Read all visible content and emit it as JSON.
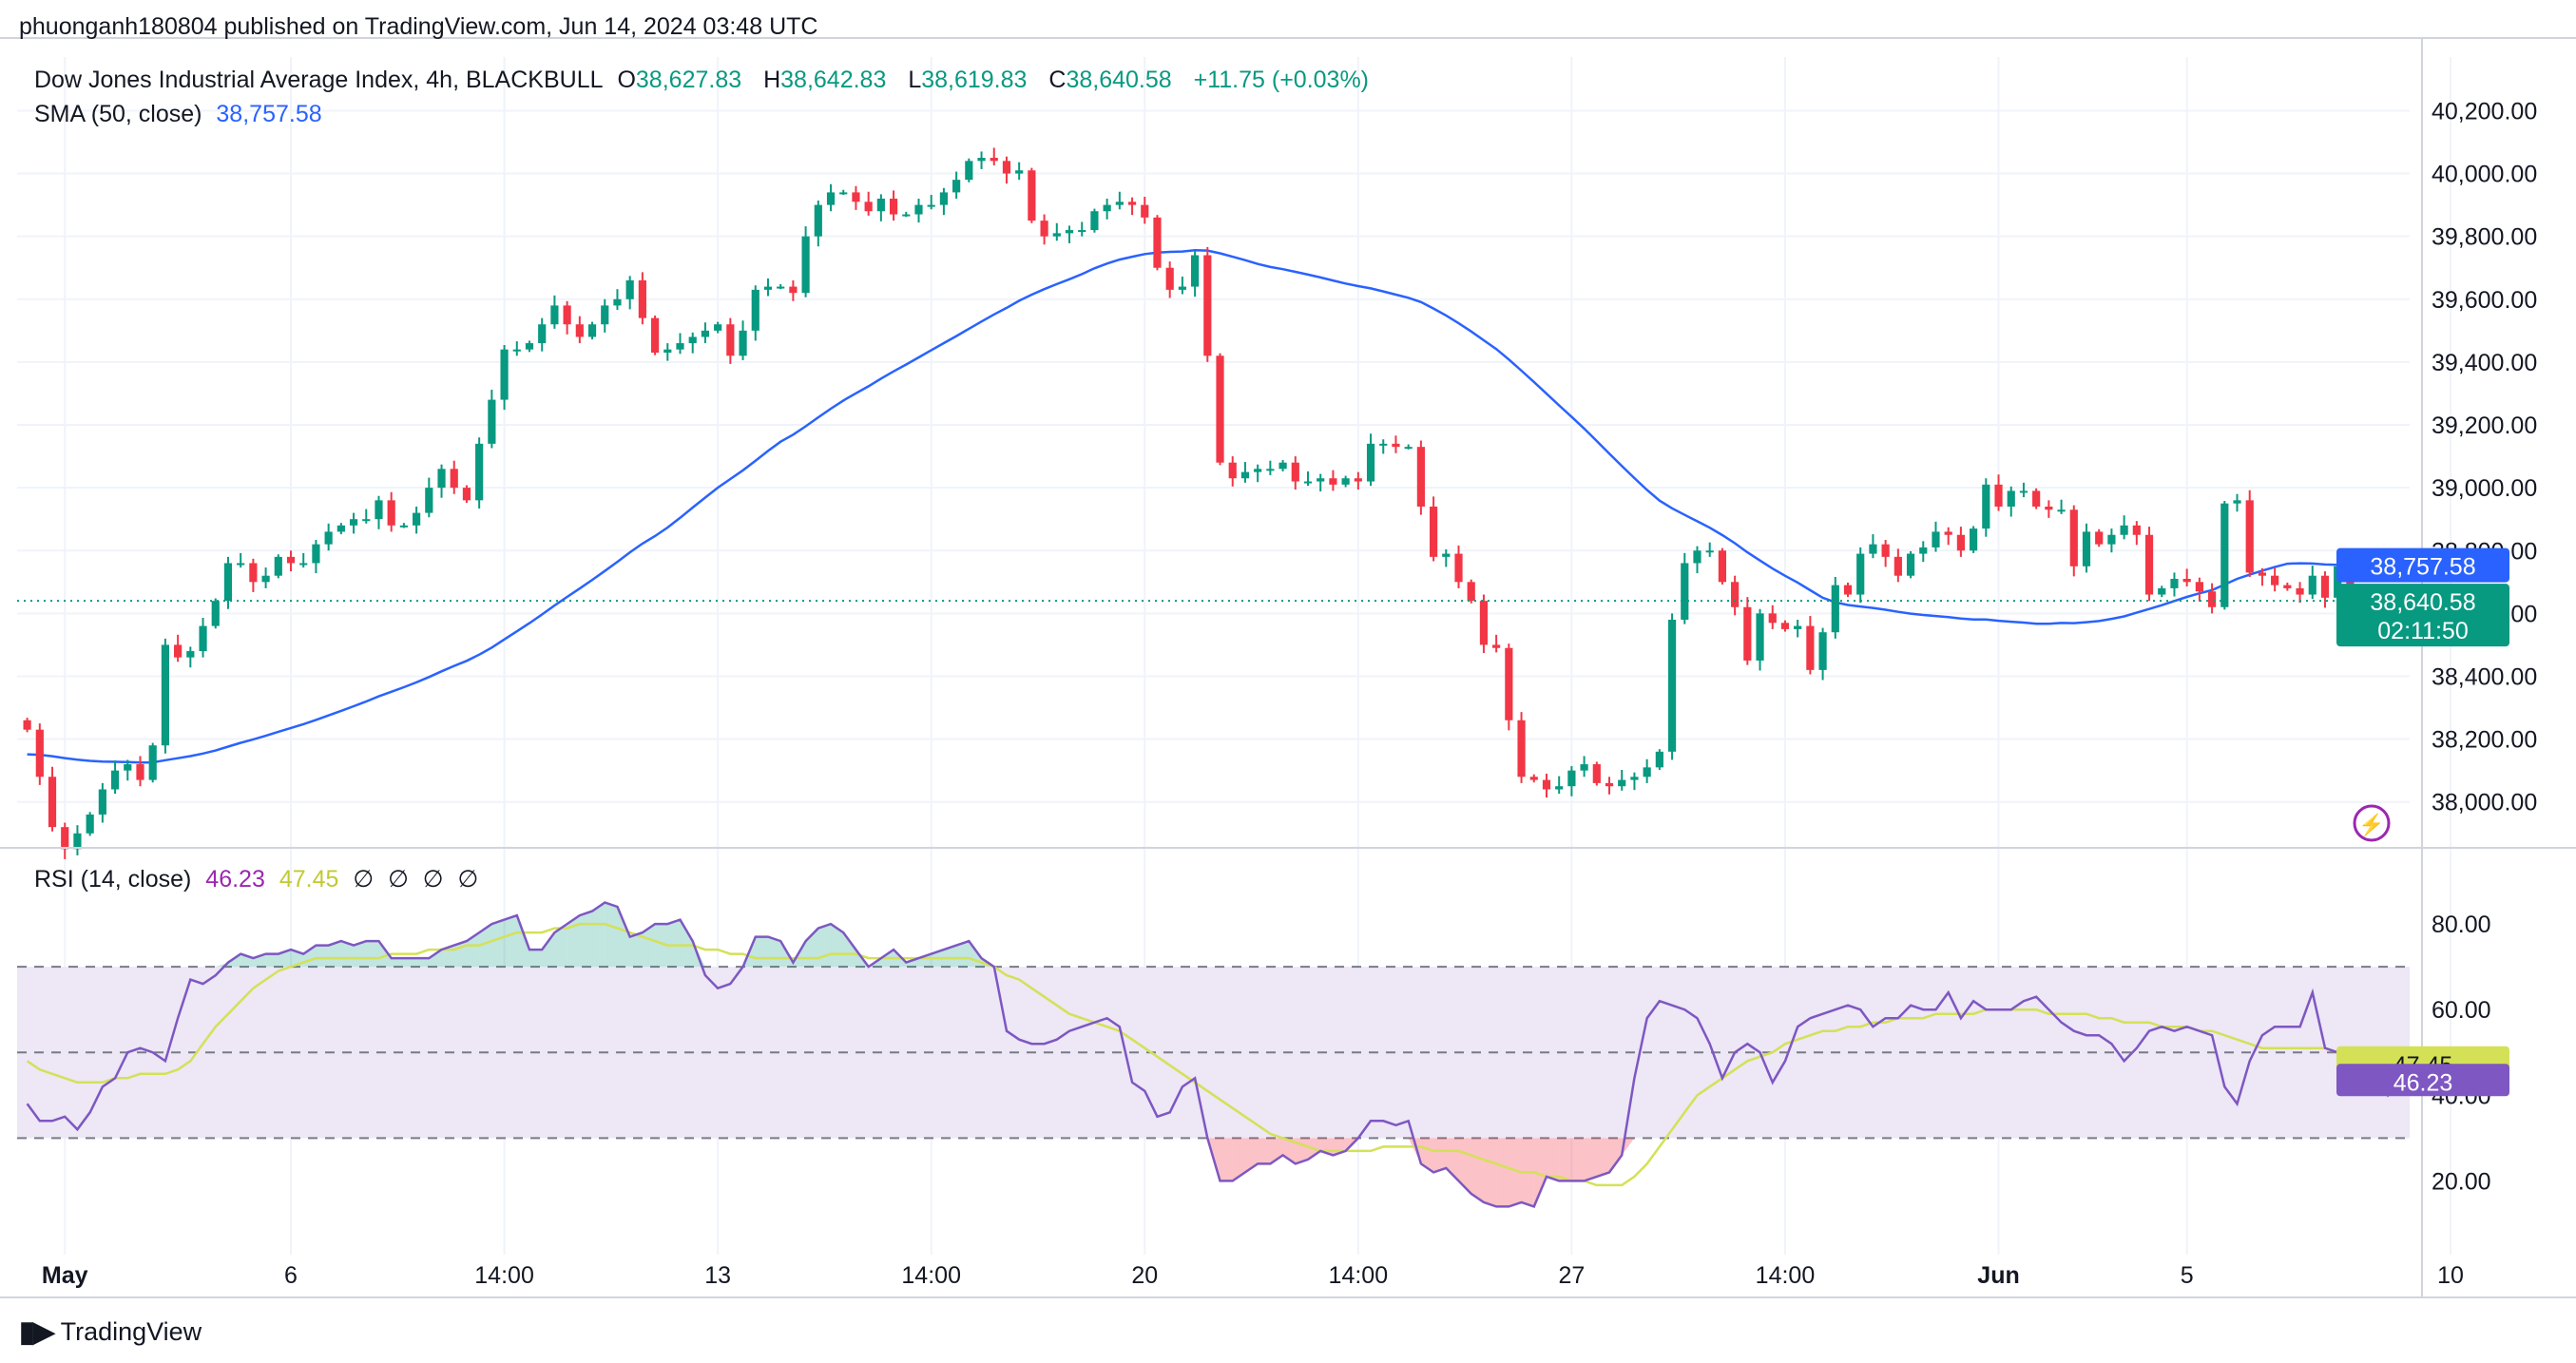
{
  "header": {
    "published_line": "phuonganh180804 published on TradingView.com, Jun 14, 2024 03:48 UTC"
  },
  "legend": {
    "symbol": "Dow Jones Industrial Average Index, 4h, BLACKBULL",
    "o_label": "O",
    "o_value": "38,627.83",
    "h_label": "H",
    "h_value": "38,642.83",
    "l_label": "L",
    "l_value": "38,619.83",
    "c_label": "C",
    "c_value": "38,640.58",
    "change": "+11.75 (+0.03%)",
    "sma_label": "SMA (50, close)",
    "sma_value": "38,757.58",
    "rsi_label": "RSI (14, close)",
    "rsi_value": "46.23",
    "rsi_ma_value": "47.45",
    "rsi_na": [
      "∅",
      "∅",
      "∅",
      "∅"
    ]
  },
  "footer": {
    "brand": "TradingView",
    "logo_icon": "tradingview-logo-icon"
  },
  "colors": {
    "up": "#089981",
    "down": "#f23645",
    "sma": "#2962ff",
    "rsi": "#7e57c2",
    "rsi_ma": "#d4e157",
    "rsi_band": "#ede7f6",
    "grid": "#f0f3fa"
  },
  "chart_data": [
    {
      "type": "candlestick",
      "title": "Dow Jones Industrial Average Index, 4h, BLACKBULL",
      "y_ticks": [
        "40,200.00",
        "40,000.00",
        "39,800.00",
        "39,600.00",
        "39,400.00",
        "39,200.00",
        "39,000.00",
        "38,800.00",
        "38,600.00",
        "38,400.00",
        "38,200.00",
        "38,000.00"
      ],
      "y_tick_values": [
        40200,
        40000,
        39800,
        39600,
        39400,
        39200,
        39000,
        38800,
        38600,
        38400,
        38200,
        38000
      ],
      "ylim": [
        37860,
        40280
      ],
      "x_tick_labels": [
        "May",
        "6",
        "14:00",
        "13",
        "14:00",
        "20",
        "14:00",
        "27",
        "14:00",
        "Jun",
        "5",
        "10",
        "14:00"
      ],
      "x_tick_bar_index": [
        3,
        21,
        38,
        55,
        72,
        89,
        106,
        123,
        140,
        157,
        172,
        193,
        210
      ],
      "close": [
        38230,
        38080,
        37920,
        37850,
        37900,
        37960,
        38040,
        38100,
        38120,
        38070,
        38180,
        38500,
        38460,
        38480,
        38560,
        38640,
        38760,
        38760,
        38700,
        38720,
        38780,
        38760,
        38760,
        38820,
        38860,
        38880,
        38900,
        38900,
        38960,
        38880,
        38880,
        38920,
        39000,
        39060,
        39000,
        38960,
        39140,
        39280,
        39440,
        39440,
        39460,
        39520,
        39580,
        39520,
        39480,
        39520,
        39580,
        39600,
        39660,
        39540,
        39430,
        39440,
        39460,
        39480,
        39500,
        39520,
        39420,
        39500,
        39630,
        39640,
        39640,
        39620,
        39800,
        39900,
        39940,
        39940,
        39910,
        39880,
        39920,
        39870,
        39870,
        39900,
        39900,
        39940,
        39980,
        40040,
        40050,
        40040,
        40000,
        40010,
        39850,
        39800,
        39810,
        39820,
        39820,
        39880,
        39900,
        39910,
        39900,
        39860,
        39700,
        39630,
        39640,
        39740,
        39420,
        39080,
        39030,
        39050,
        39060,
        39060,
        39080,
        39020,
        39020,
        39030,
        39010,
        39030,
        39020,
        39140,
        39140,
        39130,
        39130,
        38940,
        38780,
        38790,
        38700,
        38640,
        38500,
        38490,
        38260,
        38080,
        38070,
        38040,
        38050,
        38100,
        38120,
        38060,
        38050,
        38070,
        38080,
        38110,
        38160,
        38580,
        38760,
        38800,
        38800,
        38700,
        38620,
        38450,
        38600,
        38570,
        38550,
        38560,
        38420,
        38540,
        38690,
        38660,
        38790,
        38820,
        38780,
        38720,
        38790,
        38810,
        38860,
        38850,
        38800,
        38870,
        39010,
        38940,
        38990,
        38990,
        38940,
        38930,
        38930,
        38750,
        38860,
        38820,
        38850,
        38880,
        38850,
        38660,
        38680,
        38710,
        38700,
        38670,
        38620,
        38950,
        38960,
        38730,
        38720,
        38690,
        38680,
        38660,
        38720,
        38650,
        38750,
        38640
      ],
      "open_hint": "each bar opens at previous close",
      "sma_label": "SMA (50, close)",
      "last_price_label": "38,640.58",
      "countdown_label": "02:11:50",
      "sma_last_label": "38,757.58"
    },
    {
      "type": "line",
      "title": "RSI (14, close)",
      "y_ticks": [
        "80.00",
        "60.00",
        "40.00",
        "20.00"
      ],
      "y_tick_values": [
        80,
        60,
        40,
        20
      ],
      "ylim": [
        5,
        92
      ],
      "band": [
        30,
        70
      ],
      "midline": 50,
      "series": [
        {
          "name": "RSI",
          "values": [
            38,
            34,
            34,
            35,
            32,
            36,
            42,
            44,
            50,
            51,
            50,
            48,
            58,
            67,
            66,
            68,
            71,
            73,
            72,
            73,
            73,
            74,
            73,
            75,
            75,
            76,
            75,
            76,
            76,
            72,
            72,
            72,
            72,
            74,
            75,
            76,
            78,
            80,
            81,
            82,
            74,
            74,
            78,
            80,
            82,
            83,
            85,
            84,
            77,
            78,
            80,
            80,
            81,
            76,
            68,
            65,
            66,
            70,
            77,
            77,
            76,
            71,
            76,
            79,
            80,
            78,
            74,
            70,
            72,
            74,
            71,
            72,
            73,
            74,
            75,
            76,
            72,
            70,
            55,
            53,
            52,
            52,
            53,
            55,
            56,
            57,
            58,
            56,
            43,
            41,
            35,
            36,
            42,
            44,
            30,
            20,
            20,
            22,
            24,
            24,
            26,
            24,
            25,
            27,
            26,
            27,
            30,
            34,
            34,
            33,
            34,
            24,
            22,
            23,
            20,
            17,
            15,
            14,
            14,
            15,
            14,
            21,
            20,
            20,
            20,
            21,
            22,
            26,
            44,
            58,
            62,
            61,
            60,
            58,
            52,
            44,
            50,
            52,
            50,
            43,
            48,
            56,
            58,
            59,
            60,
            61,
            60,
            56,
            58,
            58,
            61,
            60,
            60,
            64,
            58,
            62,
            60,
            60,
            60,
            62,
            63,
            60,
            57,
            55,
            54,
            54,
            52,
            48,
            51,
            55,
            56,
            55,
            56,
            55,
            54,
            42,
            38,
            48,
            54,
            56,
            56,
            56,
            64,
            51,
            50,
            49,
            46,
            44,
            40,
            45,
            46,
            46
          ]
        },
        {
          "name": "RSI-based MA",
          "values": [
            48,
            46,
            45,
            44,
            43,
            43,
            43,
            44,
            44,
            45,
            45,
            45,
            46,
            48,
            52,
            56,
            59,
            62,
            65,
            67,
            69,
            70,
            71,
            72,
            72,
            72,
            72,
            72,
            72,
            73,
            73,
            73,
            74,
            74,
            74,
            75,
            75,
            76,
            77,
            78,
            78,
            78,
            79,
            79,
            80,
            80,
            80,
            79,
            78,
            77,
            76,
            75,
            75,
            75,
            74,
            74,
            73,
            73,
            72,
            72,
            72,
            72,
            72,
            72,
            73,
            73,
            73,
            72,
            72,
            72,
            72,
            72,
            72,
            72,
            72,
            72,
            71,
            70,
            68,
            67,
            65,
            63,
            61,
            59,
            58,
            57,
            56,
            55,
            53,
            51,
            49,
            47,
            45,
            43,
            41,
            39,
            37,
            35,
            33,
            31,
            30,
            29,
            28,
            27,
            27,
            27,
            27,
            27,
            28,
            28,
            28,
            28,
            27,
            27,
            27,
            26,
            25,
            24,
            23,
            22,
            22,
            21,
            21,
            20,
            20,
            19,
            19,
            19,
            21,
            24,
            28,
            32,
            36,
            40,
            42,
            44,
            46,
            48,
            49,
            50,
            52,
            53,
            54,
            55,
            55,
            56,
            56,
            57,
            57,
            58,
            58,
            58,
            59,
            59,
            59,
            59,
            60,
            60,
            60,
            60,
            60,
            59,
            59,
            59,
            59,
            58,
            58,
            57,
            57,
            57,
            56,
            56,
            56,
            55,
            55,
            54,
            53,
            52,
            51,
            51,
            51,
            51,
            51,
            51,
            50,
            49,
            48,
            48,
            47,
            47,
            47,
            47
          ]
        }
      ],
      "rsi_last_label": "46.23",
      "ma_last_label": "47.45"
    }
  ]
}
